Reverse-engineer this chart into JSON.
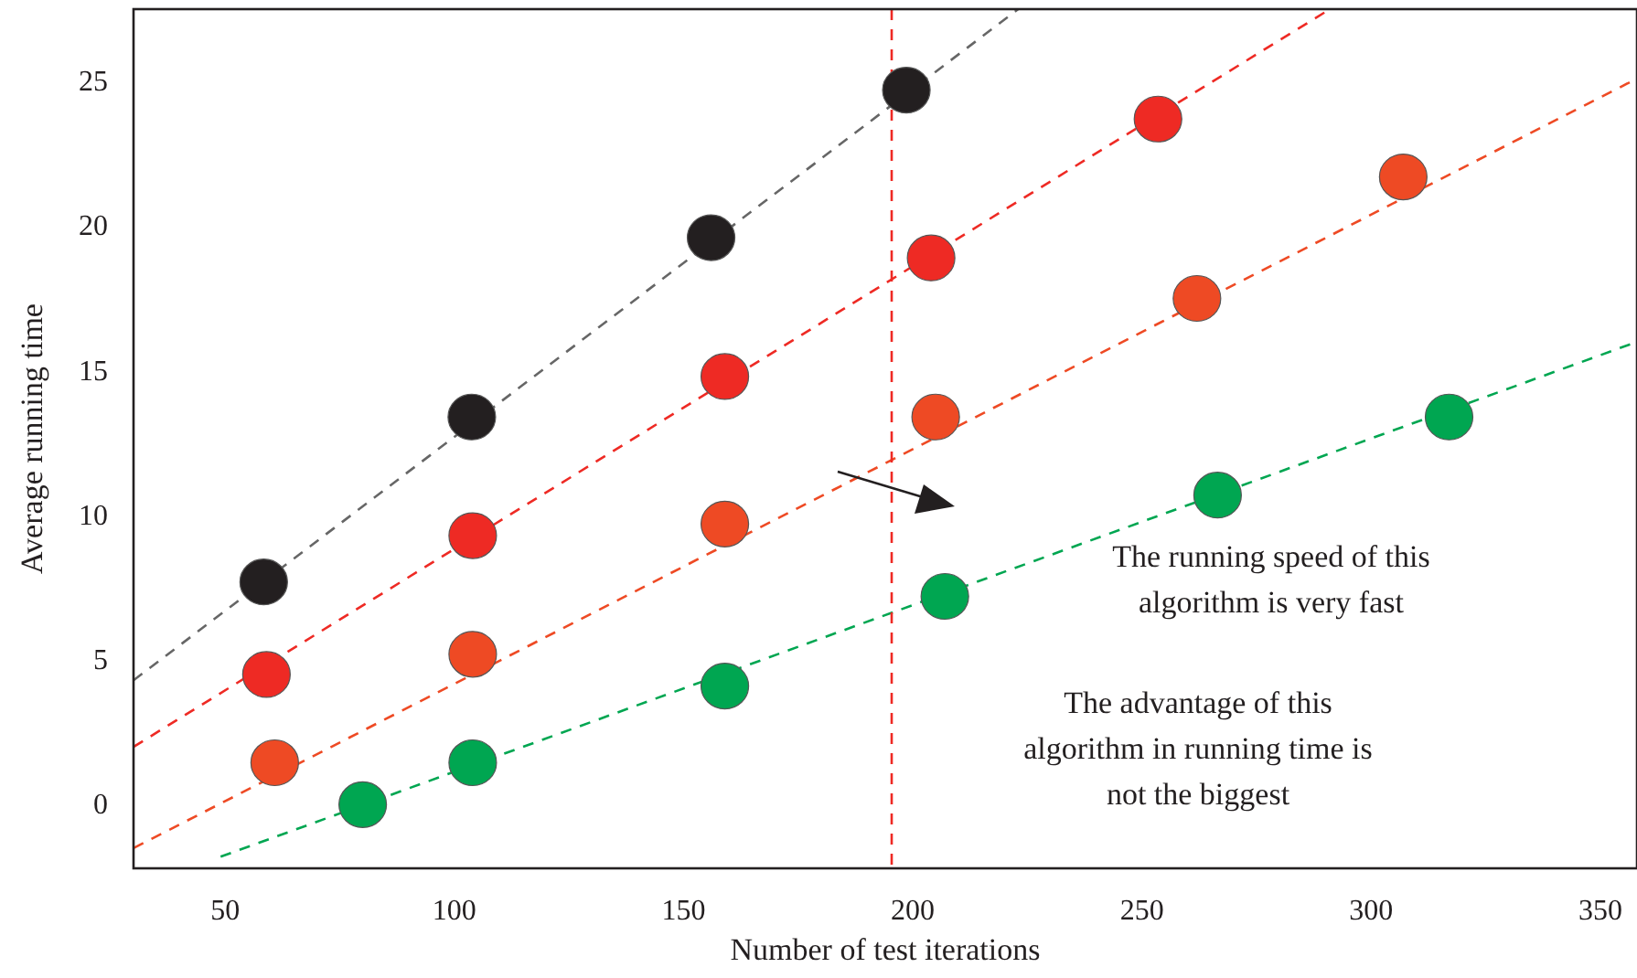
{
  "chart_data": {
    "type": "scatter",
    "xlabel": "Number of test iterations",
    "ylabel": "Average running time",
    "xlim": [
      30,
      358
    ],
    "ylim": [
      -2.2,
      27.5
    ],
    "xticks": [
      50,
      100,
      150,
      200,
      250,
      300,
      350
    ],
    "yticks": [
      0,
      5,
      10,
      15,
      20,
      25
    ],
    "grid": false,
    "marker": "circle",
    "series": [
      {
        "type": "line",
        "color": "#666666",
        "line_style": "dashed",
        "marker": "none",
        "x": [
          30,
          223
        ],
        "values": [
          4.3,
          27.5
        ]
      },
      {
        "type": "line",
        "color": "#ee2a24",
        "line_style": "dashed",
        "marker": "none",
        "x": [
          30,
          291
        ],
        "values": [
          2.0,
          27.5
        ]
      },
      {
        "type": "line",
        "color": "#ee4a24",
        "line_style": "dashed",
        "marker": "none",
        "x": [
          30,
          358
        ],
        "values": [
          -1.5,
          25.1
        ]
      },
      {
        "type": "line",
        "color": "#00a651",
        "line_style": "dashed",
        "marker": "none",
        "x": [
          49,
          358
        ],
        "values": [
          -1.8,
          16.0
        ]
      },
      {
        "color": "#231f20",
        "x": [
          58.4,
          103.8,
          156,
          198.6
        ],
        "values": [
          7.7,
          13.4,
          19.6,
          24.7
        ]
      },
      {
        "color": "#ee2a24",
        "x": [
          59,
          104,
          159,
          204,
          253.5
        ],
        "values": [
          4.5,
          9.3,
          14.8,
          18.9,
          23.7
        ]
      },
      {
        "color": "#ee4a24",
        "x": [
          60.8,
          104,
          159,
          205,
          262,
          307
        ],
        "values": [
          1.45,
          5.2,
          9.7,
          13.4,
          17.5,
          21.7
        ]
      },
      {
        "color": "#00a651",
        "x": [
          80,
          104,
          159,
          207,
          266.5,
          317
        ],
        "values": [
          0,
          1.45,
          4.1,
          7.2,
          10.7,
          13.4
        ]
      }
    ],
    "ref_lines": [
      {
        "axis": "x",
        "value": 195.4,
        "color": "#ee2a24",
        "line_style": "dashed"
      }
    ],
    "annotations": [
      "The running speed of this\nalgorithm is very fast",
      "The advantage of this\nalgorithm in running time is\nnot the biggest"
    ]
  }
}
